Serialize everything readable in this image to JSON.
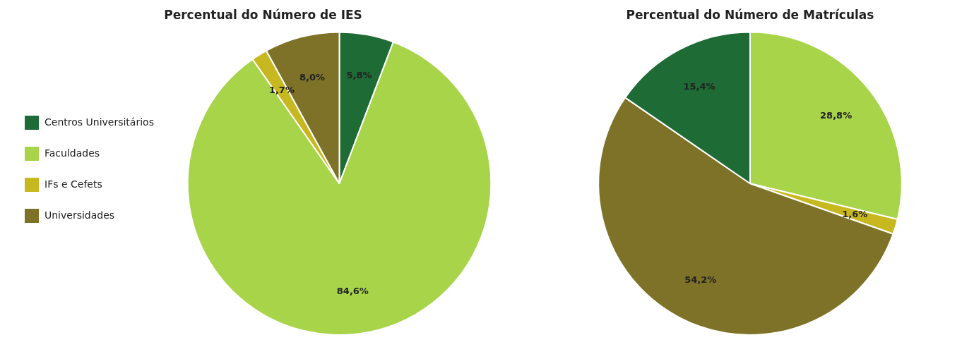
{
  "chart_data": [
    {
      "type": "pie",
      "title": "Percentual do Número de IES",
      "categories": [
        "Centros Universitários",
        "Faculdades",
        "IFs e Cefets",
        "Universidades"
      ],
      "values": [
        5.8,
        84.6,
        1.7,
        8.0
      ],
      "value_labels": [
        "5,8%",
        "84,6%",
        "1,7%",
        "8,0%"
      ],
      "colors": [
        "#1e6b35",
        "#a8d44a",
        "#c8b820",
        "#7d7228"
      ],
      "data_labels": true,
      "legend": "left"
    },
    {
      "type": "pie",
      "title": "Percentual do Número de Matrículas",
      "categories": [
        "Faculdades",
        "IFs e Cefets",
        "Universidades",
        "Centros Universitários"
      ],
      "values": [
        28.8,
        1.6,
        54.2,
        15.4
      ],
      "value_labels": [
        "28,8%",
        "1,6%",
        "54,2%",
        "15,4%"
      ],
      "colors": [
        "#a8d44a",
        "#c8b820",
        "#7d7228",
        "#1e6b35"
      ],
      "data_labels": true
    }
  ]
}
